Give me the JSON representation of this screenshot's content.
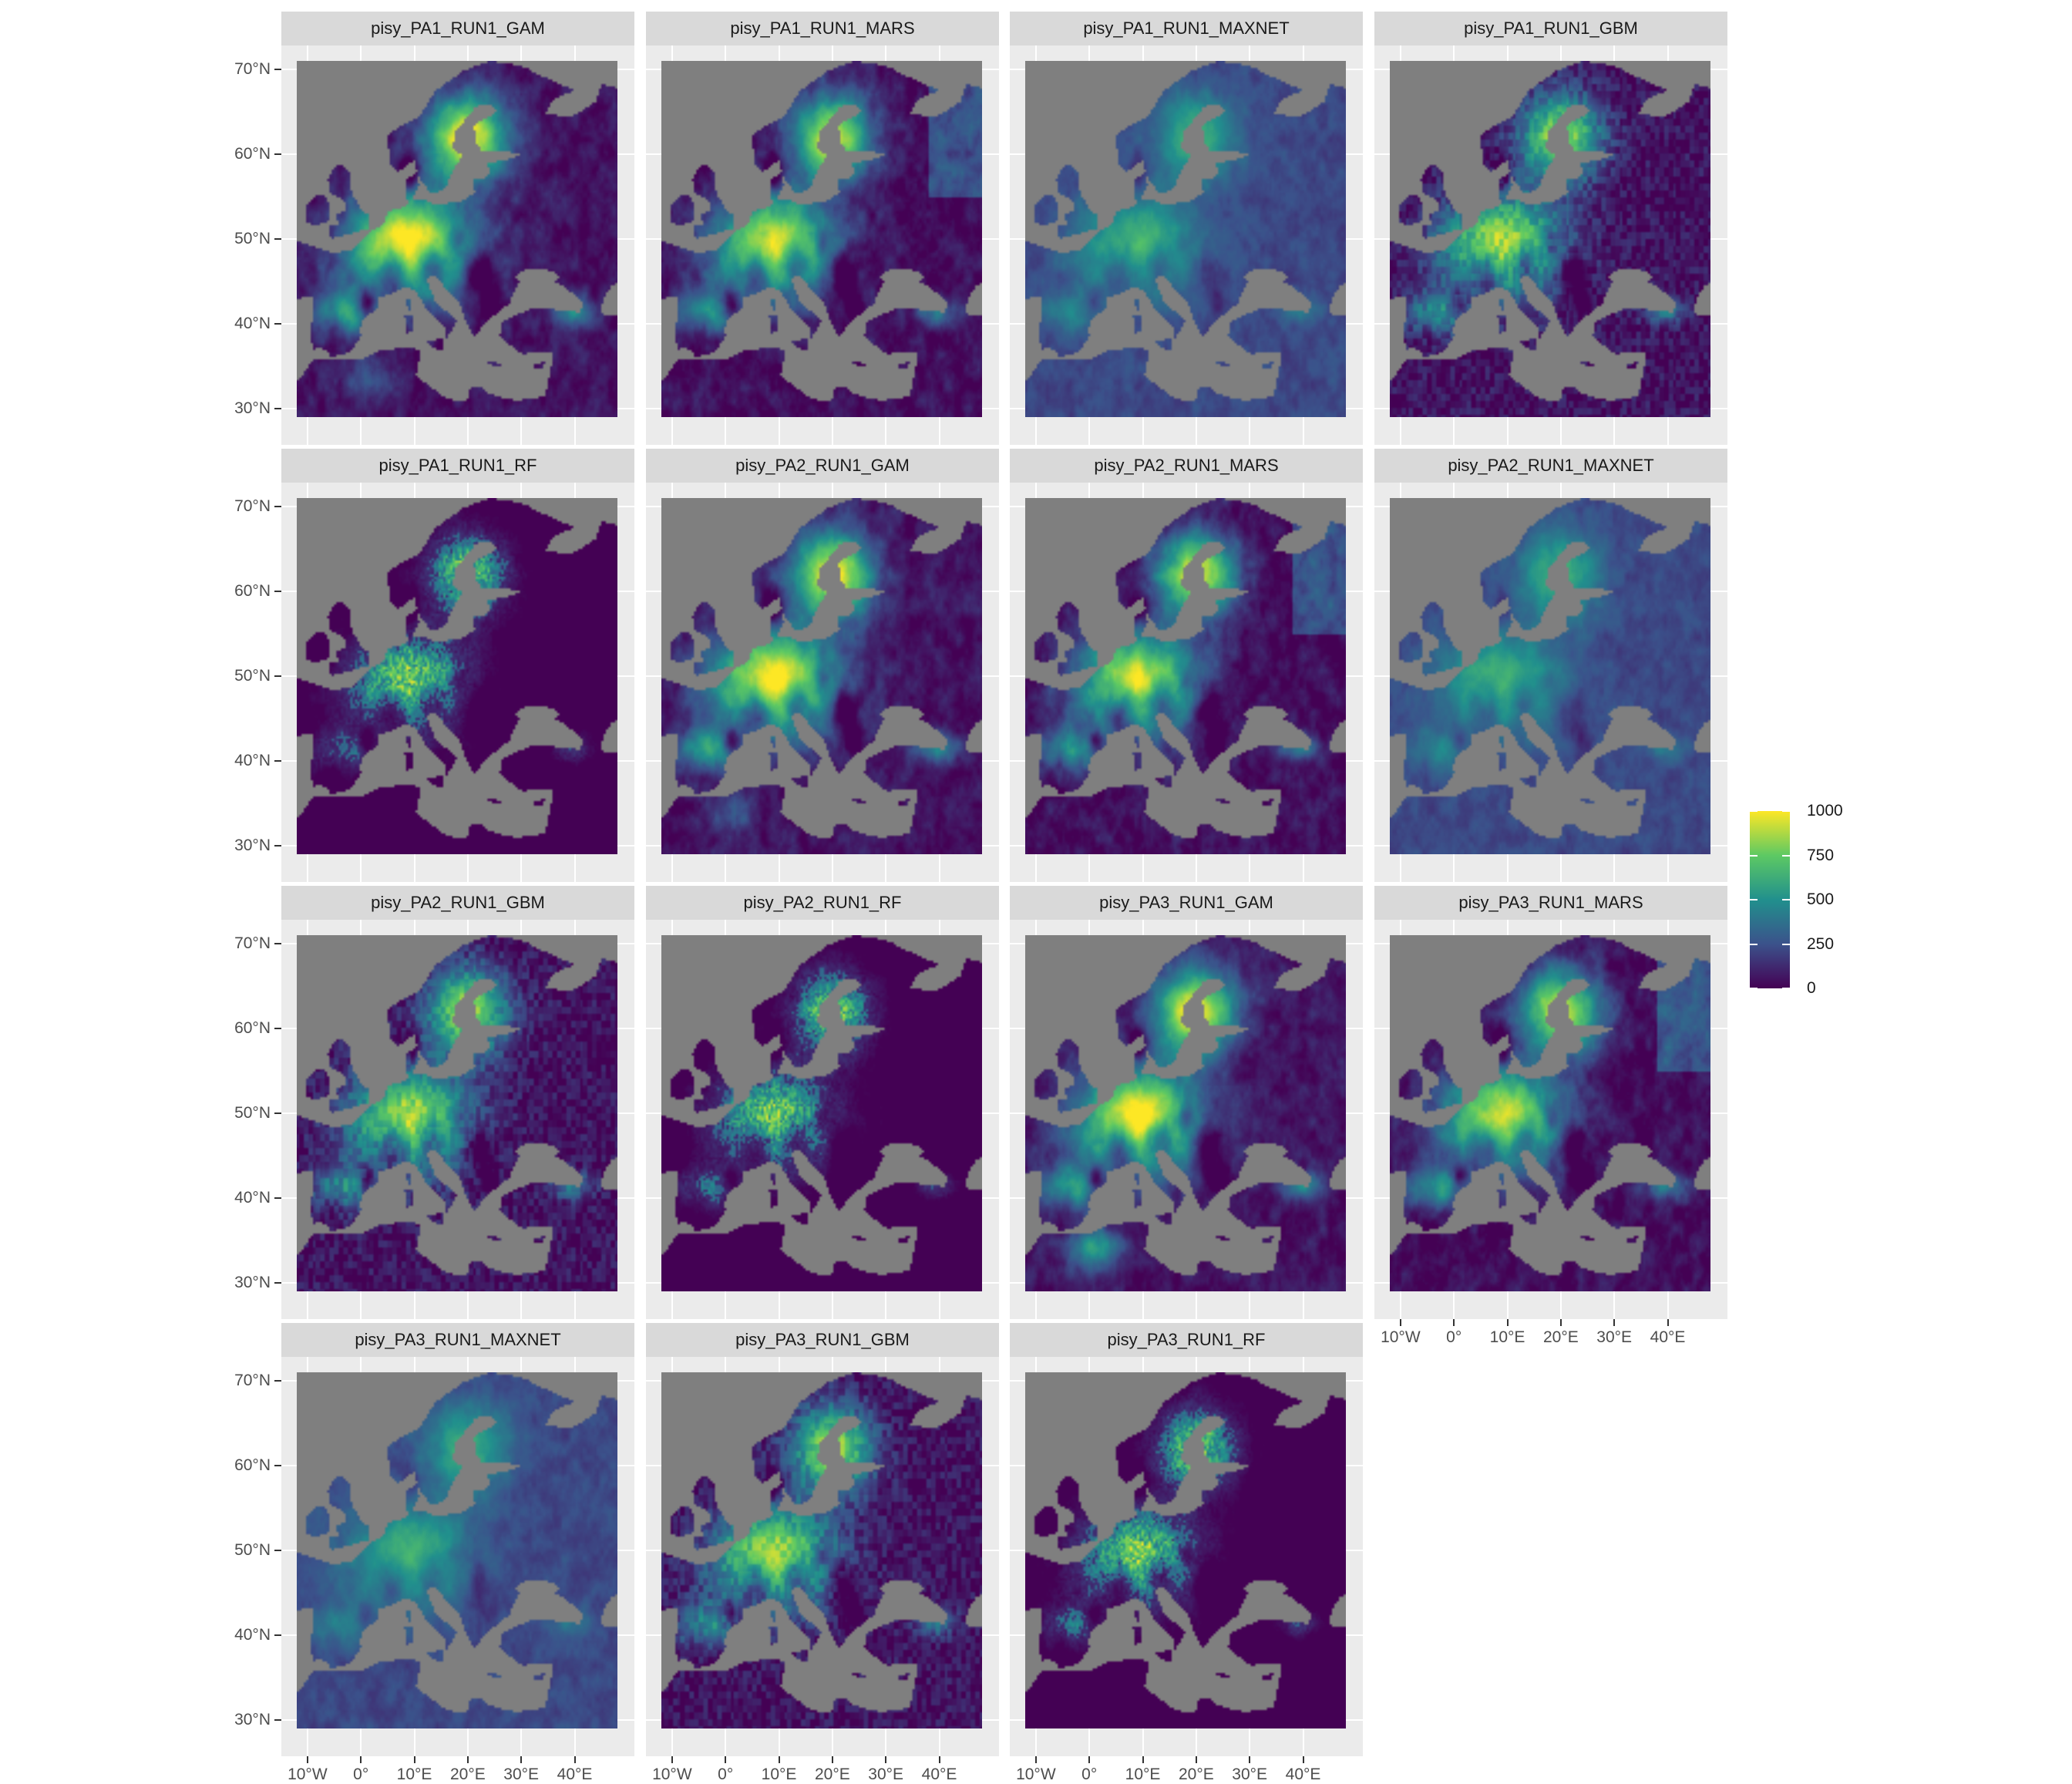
{
  "panels": [
    {
      "title": "pisy_PA1_RUN1_GAM",
      "variant": 0
    },
    {
      "title": "pisy_PA1_RUN1_MARS",
      "variant": 1
    },
    {
      "title": "pisy_PA1_RUN1_MAXNET",
      "variant": 2
    },
    {
      "title": "pisy_PA1_RUN1_GBM",
      "variant": 3
    },
    {
      "title": "pisy_PA1_RUN1_RF",
      "variant": 4
    },
    {
      "title": "pisy_PA2_RUN1_GAM",
      "variant": 0
    },
    {
      "title": "pisy_PA2_RUN1_MARS",
      "variant": 1
    },
    {
      "title": "pisy_PA2_RUN1_MAXNET",
      "variant": 2
    },
    {
      "title": "pisy_PA2_RUN1_GBM",
      "variant": 3
    },
    {
      "title": "pisy_PA2_RUN1_RF",
      "variant": 4
    },
    {
      "title": "pisy_PA3_RUN1_GAM",
      "variant": 0
    },
    {
      "title": "pisy_PA3_RUN1_MARS",
      "variant": 1
    },
    {
      "title": "pisy_PA3_RUN1_MAXNET",
      "variant": 2
    },
    {
      "title": "pisy_PA3_RUN1_GBM",
      "variant": 3
    },
    {
      "title": "pisy_PA3_RUN1_RF",
      "variant": 4
    }
  ],
  "y_axis": {
    "ticks": [
      "70°N",
      "60°N",
      "50°N",
      "40°N",
      "30°N"
    ],
    "values": [
      70,
      60,
      50,
      40,
      30
    ]
  },
  "x_axis": {
    "ticks": [
      "10°W",
      "0°",
      "10°E",
      "20°E",
      "30°E",
      "40°E"
    ],
    "values": [
      -10,
      0,
      10,
      20,
      30,
      40
    ]
  },
  "extent": {
    "lon": [
      -12,
      48
    ],
    "lat": [
      29,
      71
    ]
  },
  "legend": {
    "labels": [
      "1000",
      "750",
      "500",
      "250",
      "0"
    ],
    "values": [
      1000,
      750,
      500,
      250,
      0
    ],
    "range": [
      0,
      1000
    ],
    "colormap": [
      "#440154",
      "#3b528b",
      "#21908d",
      "#5dc963",
      "#fde725"
    ]
  },
  "colors": {
    "panel_bg": "#ebebeb",
    "strip_bg": "#d9d9d9",
    "sea": "#7f7f7f",
    "grid": "#ffffff"
  }
}
